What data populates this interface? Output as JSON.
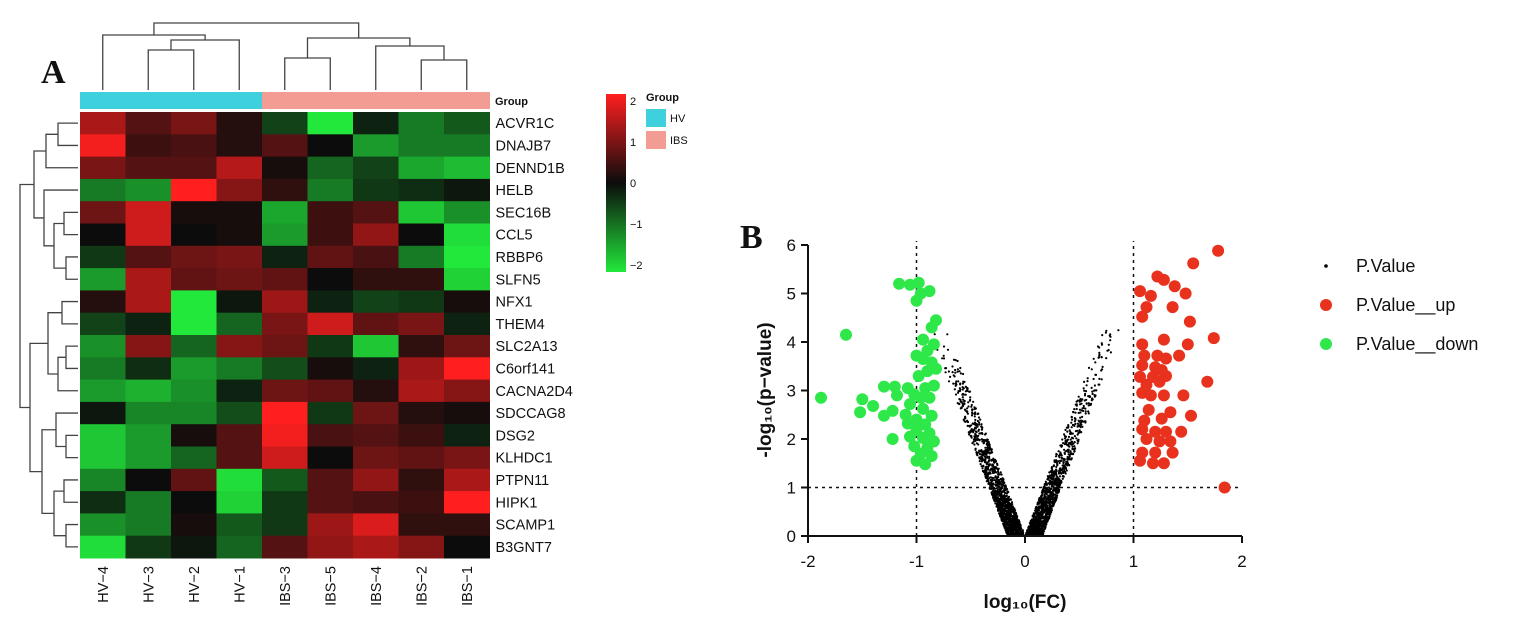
{
  "chart_data": [
    {
      "type": "heatmap",
      "panel_label": "A",
      "columns": [
        "HV-4",
        "HV-3",
        "HV-2",
        "HV-1",
        "IBS-3",
        "IBS-5",
        "IBS-4",
        "IBS-2",
        "IBS-1"
      ],
      "column_groups": [
        "HV",
        "HV",
        "HV",
        "HV",
        "IBS",
        "IBS",
        "IBS",
        "IBS",
        "IBS"
      ],
      "rows": [
        "ACVR1C",
        "DNAJB7",
        "DENND1B",
        "HELB",
        "SEC16B",
        "CCL5",
        "RBBP6",
        "SLFN5",
        "NFX1",
        "THEM4",
        "SLC2A13",
        "C6orf141",
        "CACNA2D4",
        "SDCCAG8",
        "DSG2",
        "KLHDC1",
        "PTPN11",
        "HIPK1",
        "SCAMP1",
        "B3GNT7"
      ],
      "values": [
        [
          1.3,
          0.6,
          0.9,
          0.2,
          -0.5,
          -2.0,
          -0.2,
          -1.0,
          -0.7
        ],
        [
          1.9,
          0.4,
          0.5,
          0.2,
          0.6,
          0.0,
          -1.3,
          -1.0,
          -1.0
        ],
        [
          0.9,
          0.6,
          0.6,
          1.4,
          0.1,
          -0.8,
          -0.5,
          -1.4,
          -1.6
        ],
        [
          -1.0,
          -1.2,
          2.2,
          1.0,
          0.3,
          -1.0,
          -0.4,
          -0.3,
          -0.1
        ],
        [
          0.8,
          1.6,
          0.1,
          0.1,
          -1.4,
          0.4,
          0.6,
          -1.7,
          -1.2
        ],
        [
          0.0,
          1.6,
          0.0,
          0.1,
          -1.3,
          0.4,
          1.1,
          0.0,
          -1.9
        ],
        [
          -0.4,
          0.6,
          0.8,
          0.9,
          -0.2,
          0.7,
          0.5,
          -1.0,
          -2.2
        ],
        [
          -1.3,
          1.3,
          0.7,
          0.8,
          0.7,
          0.0,
          0.3,
          0.3,
          -1.8
        ],
        [
          0.2,
          1.3,
          -2.2,
          -0.1,
          1.2,
          -0.2,
          -0.5,
          -0.4,
          0.1
        ],
        [
          -0.5,
          -0.2,
          -2.2,
          -0.8,
          0.9,
          1.6,
          0.7,
          0.9,
          -0.2
        ],
        [
          -1.2,
          1.0,
          -0.8,
          1.0,
          0.8,
          -0.4,
          -1.7,
          0.3,
          0.8
        ],
        [
          -1.0,
          -0.3,
          -1.3,
          -1.0,
          -0.6,
          0.1,
          -0.2,
          1.2,
          2.0
        ],
        [
          -1.3,
          -1.5,
          -1.2,
          -0.2,
          0.8,
          0.7,
          0.2,
          1.3,
          1.0
        ],
        [
          -0.1,
          -1.1,
          -1.1,
          -0.6,
          2.1,
          -0.4,
          0.8,
          0.2,
          0.1
        ],
        [
          -1.7,
          -1.3,
          0.1,
          0.6,
          1.9,
          0.5,
          0.6,
          0.4,
          -0.2
        ],
        [
          -1.7,
          -1.3,
          -0.8,
          0.6,
          1.6,
          0.0,
          0.8,
          0.7,
          0.9
        ],
        [
          -1.1,
          0.0,
          0.7,
          -1.9,
          -0.7,
          0.6,
          1.1,
          0.3,
          1.3
        ],
        [
          -0.3,
          -1.0,
          0.0,
          -1.8,
          -0.4,
          0.6,
          0.5,
          0.4,
          2.1
        ],
        [
          -1.2,
          -1.0,
          0.1,
          -0.7,
          -0.4,
          1.2,
          1.7,
          0.3,
          0.3
        ],
        [
          -1.9,
          -0.4,
          -0.1,
          -0.8,
          0.6,
          1.1,
          1.3,
          1.0,
          0.0
        ]
      ],
      "annotation_title": "Group",
      "colorbar": {
        "min": -2,
        "max": 2,
        "ticks": [
          2,
          1,
          0,
          -1,
          -2
        ],
        "tick_labels": [
          "2",
          "1",
          "0",
          "−1",
          "−2"
        ]
      },
      "legend": {
        "title": "Group",
        "entries": [
          {
            "name": "HV",
            "color": "#3ed0dc"
          },
          {
            "name": "IBS",
            "color": "#f29c94"
          }
        ]
      },
      "colors": {
        "low": "#22e83b",
        "mid": "#0c0c0c",
        "high": "#ff1f1f"
      }
    },
    {
      "type": "scatter",
      "panel_label": "B",
      "title": "",
      "xlabel": "log₁₀(FC)",
      "ylabel": "-log₁₀(p−value)",
      "xlim": [
        -2,
        2
      ],
      "ylim": [
        0,
        6
      ],
      "xticks": [
        -2,
        -1,
        0,
        1,
        2
      ],
      "xtick_labels": [
        "-2",
        "-1",
        "0",
        "1",
        "2"
      ],
      "yticks": [
        0,
        1,
        2,
        3,
        4,
        5,
        6
      ],
      "threshold_lines": {
        "x": [
          -1,
          1
        ],
        "y": 1
      },
      "background_series": {
        "name": "P.Value",
        "color": "#000000",
        "description": "dense V-shaped cloud, approx |logFC| ~ 0.17 x -log10(p) (+/- 0.08), ~2500 points"
      },
      "series": [
        {
          "name": "P.Value__up",
          "color": "#e8321e",
          "points": [
            [
              1.78,
              5.88
            ],
            [
              1.55,
              5.62
            ],
            [
              1.22,
              5.35
            ],
            [
              1.28,
              5.28
            ],
            [
              1.38,
              5.15
            ],
            [
              1.48,
              5.0
            ],
            [
              1.06,
              5.05
            ],
            [
              1.16,
              4.95
            ],
            [
              1.36,
              4.72
            ],
            [
              1.12,
              4.72
            ],
            [
              1.08,
              4.52
            ],
            [
              1.52,
              4.42
            ],
            [
              1.74,
              4.08
            ],
            [
              1.28,
              4.05
            ],
            [
              1.08,
              3.95
            ],
            [
              1.5,
              3.95
            ],
            [
              1.1,
              3.72
            ],
            [
              1.22,
              3.72
            ],
            [
              1.3,
              3.66
            ],
            [
              1.42,
              3.72
            ],
            [
              1.08,
              3.52
            ],
            [
              1.2,
              3.48
            ],
            [
              1.26,
              3.42
            ],
            [
              1.06,
              3.28
            ],
            [
              1.18,
              3.28
            ],
            [
              1.3,
              3.3
            ],
            [
              1.12,
              3.12
            ],
            [
              1.24,
              3.18
            ],
            [
              1.68,
              3.18
            ],
            [
              1.08,
              2.95
            ],
            [
              1.16,
              2.9
            ],
            [
              1.28,
              2.9
            ],
            [
              1.46,
              2.9
            ],
            [
              1.14,
              2.6
            ],
            [
              1.34,
              2.55
            ],
            [
              1.1,
              2.38
            ],
            [
              1.26,
              2.42
            ],
            [
              1.53,
              2.48
            ],
            [
              1.08,
              2.2
            ],
            [
              1.2,
              2.15
            ],
            [
              1.3,
              2.15
            ],
            [
              1.44,
              2.15
            ],
            [
              1.12,
              2.0
            ],
            [
              1.24,
              1.95
            ],
            [
              1.34,
              1.95
            ],
            [
              1.08,
              1.72
            ],
            [
              1.2,
              1.72
            ],
            [
              1.36,
              1.72
            ],
            [
              1.06,
              1.55
            ],
            [
              1.18,
              1.5
            ],
            [
              1.28,
              1.5
            ],
            [
              1.84,
              1.0
            ]
          ]
        },
        {
          "name": "P.Value__down",
          "color": "#2ee84a",
          "points": [
            [
              -1.16,
              5.2
            ],
            [
              -1.06,
              5.18
            ],
            [
              -0.98,
              5.22
            ],
            [
              -0.88,
              5.05
            ],
            [
              -0.96,
              5.0
            ],
            [
              -1.0,
              4.85
            ],
            [
              -0.82,
              4.45
            ],
            [
              -0.86,
              4.3
            ],
            [
              -1.65,
              4.15
            ],
            [
              -0.94,
              4.05
            ],
            [
              -0.84,
              3.95
            ],
            [
              -0.9,
              3.82
            ],
            [
              -1.0,
              3.72
            ],
            [
              -0.94,
              3.65
            ],
            [
              -0.86,
              3.58
            ],
            [
              -0.82,
              3.45
            ],
            [
              -0.9,
              3.4
            ],
            [
              -0.98,
              3.3
            ],
            [
              -1.3,
              3.08
            ],
            [
              -1.2,
              3.08
            ],
            [
              -1.08,
              3.05
            ],
            [
              -0.92,
              3.05
            ],
            [
              -0.84,
              3.1
            ],
            [
              -1.18,
              2.9
            ],
            [
              -1.02,
              2.92
            ],
            [
              -0.96,
              2.85
            ],
            [
              -0.88,
              2.85
            ],
            [
              -1.88,
              2.85
            ],
            [
              -1.5,
              2.82
            ],
            [
              -1.4,
              2.68
            ],
            [
              -1.22,
              2.58
            ],
            [
              -1.52,
              2.55
            ],
            [
              -1.06,
              2.72
            ],
            [
              -0.94,
              2.62
            ],
            [
              -1.3,
              2.48
            ],
            [
              -1.1,
              2.5
            ],
            [
              -0.86,
              2.48
            ],
            [
              -1.0,
              2.4
            ],
            [
              -1.08,
              2.32
            ],
            [
              -0.92,
              2.3
            ],
            [
              -1.0,
              2.18
            ],
            [
              -0.88,
              2.12
            ],
            [
              -1.06,
              2.05
            ],
            [
              -0.94,
              2.02
            ],
            [
              -0.84,
              1.95
            ],
            [
              -1.22,
              2.0
            ],
            [
              -1.02,
              1.85
            ],
            [
              -0.9,
              1.82
            ],
            [
              -0.96,
              1.7
            ],
            [
              -0.86,
              1.65
            ],
            [
              -1.0,
              1.55
            ],
            [
              -0.92,
              1.48
            ]
          ]
        }
      ],
      "legend": {
        "placement": "right",
        "entries": [
          {
            "name": "P.Value",
            "color": "#000000"
          },
          {
            "name": "P.Value__up",
            "color": "#e8321e"
          },
          {
            "name": "P.Value__down",
            "color": "#2ee84a"
          }
        ]
      }
    }
  ]
}
